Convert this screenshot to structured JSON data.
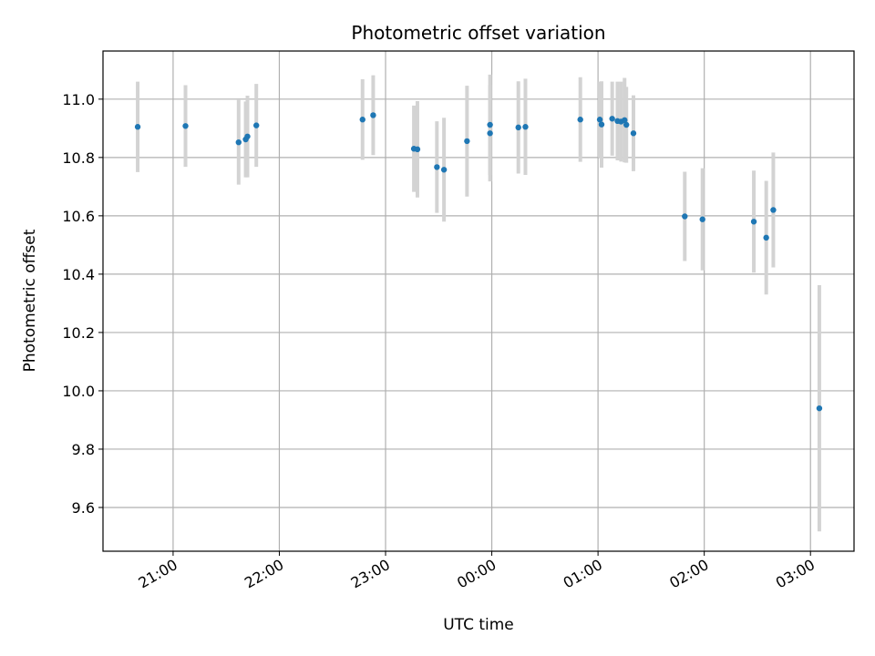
{
  "chart_data": {
    "type": "scatter",
    "title": "Photometric offset variation",
    "xlabel": "UTC time",
    "ylabel": "Photometric offset",
    "x_tick_labels": [
      "21:00",
      "22:00",
      "23:00",
      "00:00",
      "01:00",
      "02:00",
      "03:00"
    ],
    "x_tick_hours": [
      21,
      22,
      23,
      24,
      25,
      26,
      27
    ],
    "y_ticks": [
      9.6,
      9.8,
      10.0,
      10.2,
      10.4,
      10.6,
      10.8,
      11.0
    ],
    "y_tick_labels": [
      "9.6",
      "9.8",
      "10.0",
      "10.2",
      "10.4",
      "10.6",
      "10.8",
      "11.0"
    ],
    "xlim_hours": [
      20.34,
      27.41
    ],
    "ylim": [
      9.45,
      11.165
    ],
    "grid": true,
    "point_color": "#1f77b4",
    "errorbar_color": "#d3d3d3",
    "series": [
      {
        "points": [
          {
            "t": "20:40",
            "y": 10.905,
            "err": 0.155
          },
          {
            "t": "21:07",
            "y": 10.908,
            "err": 0.14
          },
          {
            "t": "21:37",
            "y": 10.852,
            "err": 0.145
          },
          {
            "t": "21:41",
            "y": 10.862,
            "err": 0.13
          },
          {
            "t": "21:42",
            "y": 10.872,
            "err": 0.14
          },
          {
            "t": "21:47",
            "y": 10.91,
            "err": 0.142
          },
          {
            "t": "22:47",
            "y": 10.93,
            "err": 0.138
          },
          {
            "t": "22:53",
            "y": 10.945,
            "err": 0.137
          },
          {
            "t": "23:16",
            "y": 10.83,
            "err": 0.148
          },
          {
            "t": "23:18",
            "y": 10.828,
            "err": 0.165
          },
          {
            "t": "23:29",
            "y": 10.767,
            "err": 0.157
          },
          {
            "t": "23:33",
            "y": 10.758,
            "err": 0.178
          },
          {
            "t": "23:46",
            "y": 10.856,
            "err": 0.19
          },
          {
            "t": "23:59",
            "y": 10.883,
            "err": 0.165
          },
          {
            "t": "23:59",
            "y": 10.912,
            "err": 0.172
          },
          {
            "t": "00:15",
            "y": 10.903,
            "err": 0.158
          },
          {
            "t": "00:19",
            "y": 10.905,
            "err": 0.165
          },
          {
            "t": "00:50",
            "y": 10.93,
            "err": 0.145
          },
          {
            "t": "01:01",
            "y": 10.93,
            "err": 0.13
          },
          {
            "t": "01:02",
            "y": 10.913,
            "err": 0.148
          },
          {
            "t": "01:08",
            "y": 10.933,
            "err": 0.127
          },
          {
            "t": "01:11",
            "y": 10.925,
            "err": 0.135
          },
          {
            "t": "01:13",
            "y": 10.923,
            "err": 0.137
          },
          {
            "t": "01:15",
            "y": 10.928,
            "err": 0.145
          },
          {
            "t": "01:16",
            "y": 10.912,
            "err": 0.13
          },
          {
            "t": "01:20",
            "y": 10.883,
            "err": 0.13
          },
          {
            "t": "01:49",
            "y": 10.598,
            "err": 0.153
          },
          {
            "t": "01:59",
            "y": 10.588,
            "err": 0.175
          },
          {
            "t": "02:28",
            "y": 10.58,
            "err": 0.175
          },
          {
            "t": "02:35",
            "y": 10.525,
            "err": 0.195
          },
          {
            "t": "02:39",
            "y": 10.62,
            "err": 0.197
          },
          {
            "t": "03:05",
            "y": 9.94,
            "err": 0.422
          }
        ]
      }
    ]
  }
}
